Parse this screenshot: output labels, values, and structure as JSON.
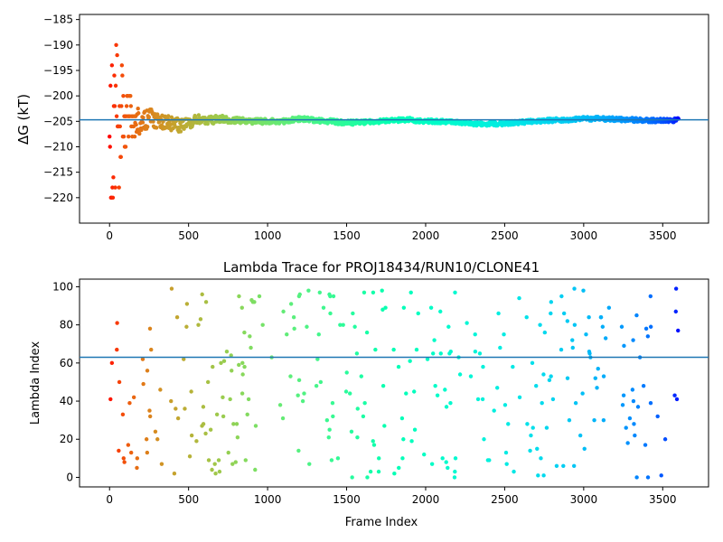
{
  "chart_data": [
    {
      "type": "scatter",
      "title": "",
      "xlabel": "",
      "ylabel": "ΔG (kT)",
      "xlim": [
        -190,
        3790
      ],
      "ylim": [
        -225,
        -184
      ],
      "xticks": [
        0,
        500,
        1000,
        1500,
        2000,
        2500,
        3000,
        3500
      ],
      "xtick_labels": [
        "0",
        "500",
        "1000",
        "1500",
        "2000",
        "2500",
        "3000",
        "3500"
      ],
      "yticks": [
        -185,
        -190,
        -195,
        -200,
        -205,
        -210,
        -215,
        -220
      ],
      "ytick_labels": [
        "−185",
        "−190",
        "−195",
        "−200",
        "−205",
        "−210",
        "−215",
        "−220"
      ],
      "hline": -204.7,
      "hline_color": "#1f77b4",
      "colormap": "rainbow (red at frame 0 → violet at frame 3600)",
      "frames": 3600,
      "trace": {
        "x": [
          0,
          20,
          40,
          60,
          80,
          100,
          120,
          150,
          180,
          220,
          260,
          300,
          350,
          400,
          450,
          500,
          550,
          600,
          700,
          800,
          900,
          1000,
          1100,
          1200,
          1300,
          1400,
          1500,
          1600,
          1700,
          1800,
          1900,
          2000,
          2100,
          2200,
          2300,
          2400,
          2500,
          2600,
          2700,
          2800,
          2900,
          3000,
          3100,
          3200,
          3300,
          3400,
          3500,
          3600
        ],
        "y": [
          -205,
          -206,
          -204,
          -207,
          -203,
          -205,
          -204,
          -205,
          -205,
          -205,
          -204.5,
          -204.8,
          -205,
          -205.5,
          -205.8,
          -205.5,
          -204.5,
          -205,
          -204.5,
          -204.8,
          -205,
          -205,
          -205,
          -204.5,
          -204.8,
          -205,
          -205.3,
          -205.2,
          -205,
          -204.8,
          -204.7,
          -205,
          -205,
          -205.2,
          -205.5,
          -205.5,
          -205.4,
          -205.2,
          -205,
          -204.8,
          -204.7,
          -204.5,
          -204.5,
          -204.6,
          -204.7,
          -204.8,
          -204.8,
          -204.8
        ],
        "spread": [
          15,
          15,
          15,
          12,
          9,
          7,
          5,
          3.2,
          2.6,
          2.2,
          1.9,
          1.7,
          1.5,
          1.4,
          1.3,
          1.1,
          0.9,
          0.8,
          0.7,
          0.6,
          0.5,
          0.5,
          0.45,
          0.45,
          0.45,
          0.45,
          0.45,
          0.45,
          0.4,
          0.4,
          0.4,
          0.4,
          0.4,
          0.4,
          0.4,
          0.4,
          0.4,
          0.4,
          0.4,
          0.4,
          0.4,
          0.4,
          0.4,
          0.4,
          0.4,
          0.4,
          0.4,
          0.4
        ]
      }
    },
    {
      "type": "scatter",
      "title": "Lambda Trace for PROJ18434/RUN10/CLONE41",
      "xlabel": "Frame Index",
      "ylabel": "Lambda Index",
      "xlim": [
        -190,
        3790
      ],
      "ylim": [
        -5,
        104
      ],
      "xticks": [
        0,
        500,
        1000,
        1500,
        2000,
        2500,
        3000,
        3500
      ],
      "xtick_labels": [
        "0",
        "500",
        "1000",
        "1500",
        "2000",
        "2500",
        "3000",
        "3500"
      ],
      "yticks": [
        0,
        20,
        40,
        60,
        80,
        100
      ],
      "ytick_labels": [
        "0",
        "20",
        "40",
        "60",
        "80",
        "100"
      ],
      "hline": 63,
      "hline_color": "#1f77b4",
      "colormap": "rainbow (red at frame 0 → violet at frame 3600)",
      "frames": 3600,
      "lambda_range": [
        0,
        99
      ]
    }
  ]
}
